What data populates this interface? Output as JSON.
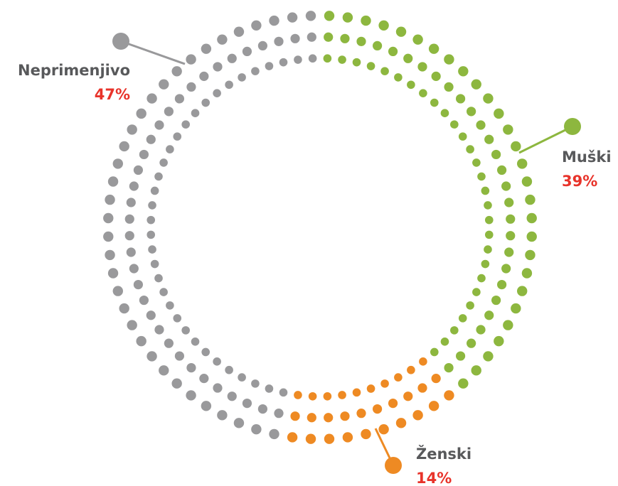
{
  "chart_data": {
    "type": "pie",
    "categories": [
      "Muški",
      "Ženski",
      "Neprimenjivo"
    ],
    "values": [
      39,
      14,
      47
    ],
    "value_labels": [
      "39%",
      "14%",
      "47%"
    ],
    "colors": [
      "#8db73f",
      "#ee8a23",
      "#99999b"
    ]
  }
}
